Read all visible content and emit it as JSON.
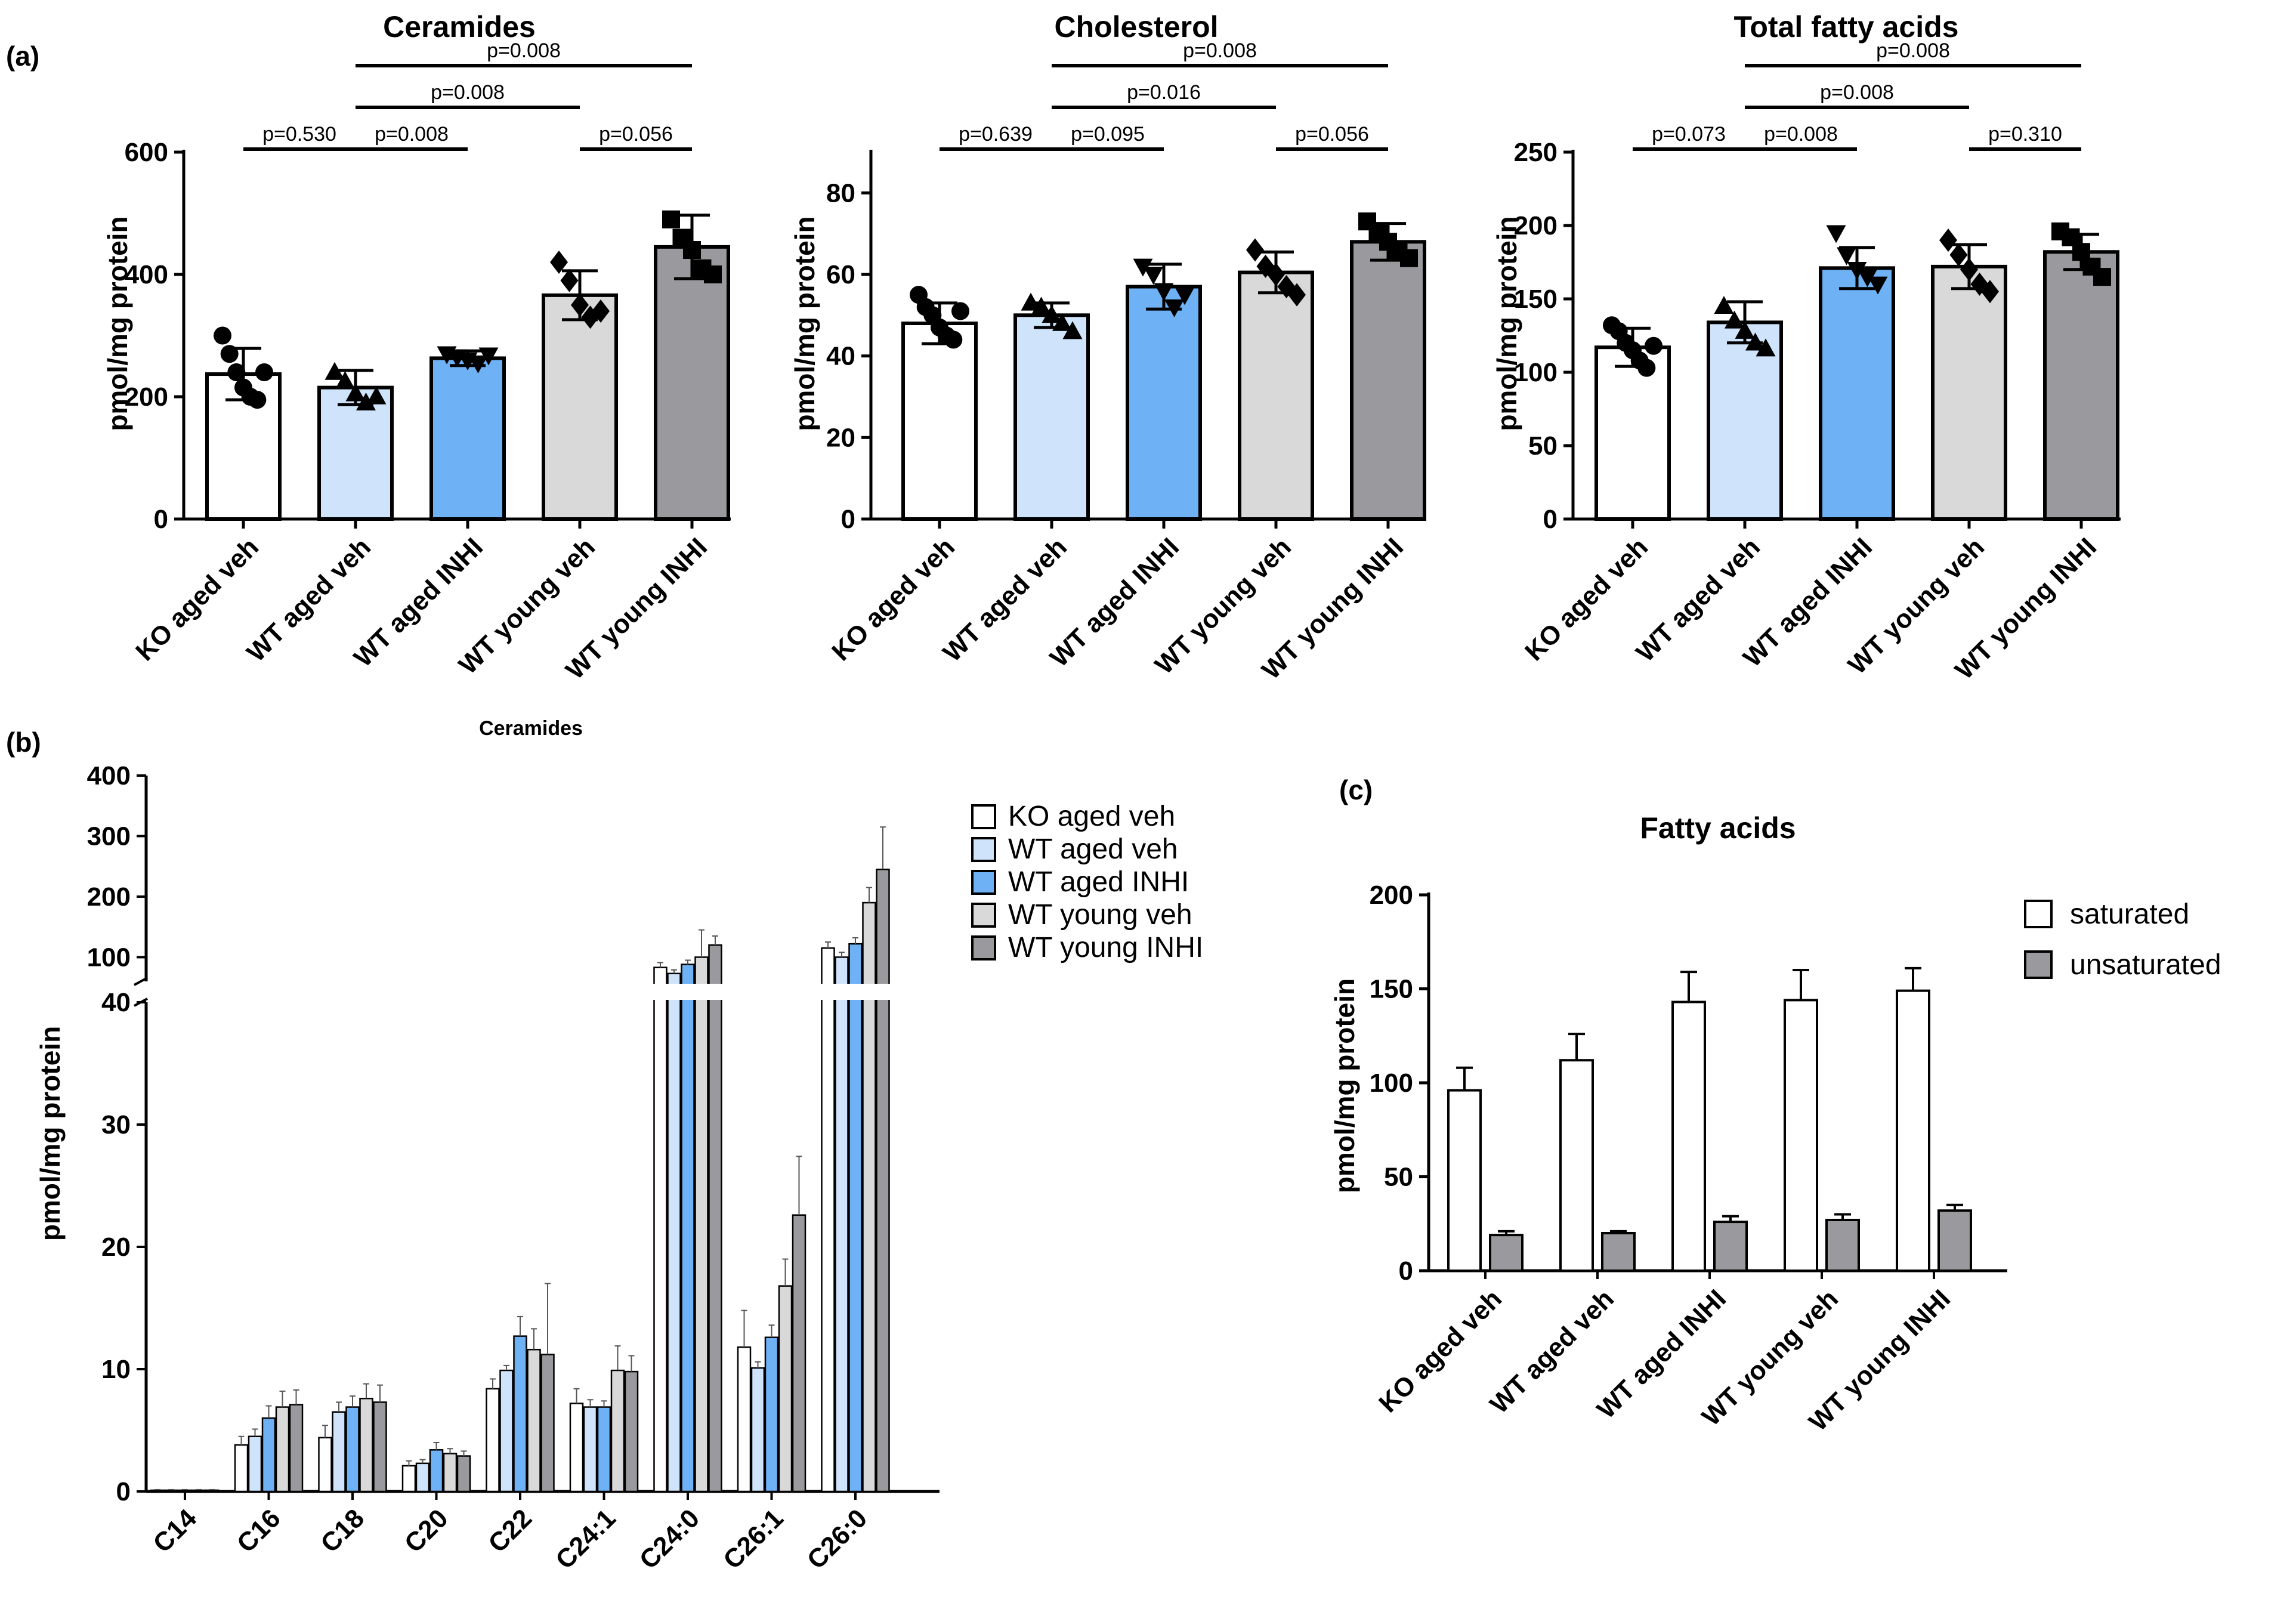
{
  "panel_labels": {
    "a": "(a)",
    "b": "(b)",
    "c": "(c)"
  },
  "colors": {
    "KO aged veh": "#ffffff",
    "WT aged veh": "#cfe4fb",
    "WT aged INHI": "#6fb1f5",
    "WT young veh": "#d9d9d9",
    "WT young INHI": "#9a9a9e",
    "saturated": "#ffffff",
    "unsaturated": "#9a9a9e"
  },
  "chart_data": [
    {
      "id": "ceramides",
      "type": "bar",
      "title": "Ceramides",
      "xlabel": "",
      "ylabel": "pmol/mg protein",
      "categories": [
        "KO aged veh",
        "WT aged veh",
        "WT aged INHI",
        "WT young veh",
        "WT young INHI"
      ],
      "values": [
        237,
        215,
        263,
        366,
        445
      ],
      "errors": [
        42,
        28,
        12,
        40,
        52
      ],
      "points": [
        [
          300,
          270,
          240,
          215,
          200,
          195,
          240
        ],
        [
          240,
          225,
          205,
          190,
          200
        ],
        [
          270,
          265,
          260,
          255,
          268
        ],
        [
          420,
          390,
          350,
          330,
          340
        ],
        [
          490,
          460,
          440,
          410,
          400
        ]
      ],
      "point_marker": [
        "circle",
        "triangle",
        "triangle-down",
        "diamond",
        "square"
      ],
      "ylim": [
        0,
        600
      ],
      "yticks": [
        0,
        200,
        400,
        600
      ],
      "comparisons": [
        {
          "from": 0,
          "to": 1,
          "label": "p=0.530"
        },
        {
          "from": 1,
          "to": 2,
          "label": "p=0.008"
        },
        {
          "from": 3,
          "to": 4,
          "label": "p=0.056"
        },
        {
          "from": 1,
          "to": 3,
          "label": "p=0.008"
        },
        {
          "from": 1,
          "to": 4,
          "label": "p=0.008"
        }
      ]
    },
    {
      "id": "cholesterol",
      "type": "bar",
      "title": "Cholesterol",
      "xlabel": "",
      "ylabel": "pmol/mg protein",
      "categories": [
        "KO aged veh",
        "WT aged veh",
        "WT aged INHI",
        "WT young veh",
        "WT young INHI"
      ],
      "values": [
        48,
        50,
        57,
        60.5,
        68
      ],
      "errors": [
        5,
        3,
        5.5,
        5,
        4.5
      ],
      "points": [
        [
          55,
          52,
          50,
          47,
          45,
          44,
          51
        ],
        [
          53,
          52,
          50,
          48,
          46
        ],
        [
          62,
          60,
          56,
          52,
          55
        ],
        [
          66,
          62,
          60,
          57,
          55
        ],
        [
          73,
          70,
          68,
          66,
          64
        ]
      ],
      "point_marker": [
        "circle",
        "triangle",
        "triangle-down",
        "diamond",
        "square"
      ],
      "ylim": [
        0,
        90
      ],
      "yticks": [
        0,
        20,
        40,
        60,
        80
      ],
      "comparisons": [
        {
          "from": 0,
          "to": 1,
          "label": "p=0.639"
        },
        {
          "from": 1,
          "to": 2,
          "label": "p=0.095"
        },
        {
          "from": 3,
          "to": 4,
          "label": "p=0.056"
        },
        {
          "from": 1,
          "to": 3,
          "label": "p=0.016"
        },
        {
          "from": 1,
          "to": 4,
          "label": "p=0.008"
        }
      ]
    },
    {
      "id": "total-fatty-acids",
      "type": "bar",
      "title": "Total fatty acids",
      "xlabel": "",
      "ylabel": "pmol/mg protein",
      "categories": [
        "KO aged veh",
        "WT aged veh",
        "WT aged INHI",
        "WT young veh",
        "WT young INHI"
      ],
      "values": [
        117,
        134,
        171,
        172,
        182
      ],
      "errors": [
        13,
        14,
        14,
        15,
        12
      ],
      "points": [
        [
          132,
          128,
          120,
          115,
          108,
          103,
          118
        ],
        [
          145,
          135,
          128,
          120,
          116
        ],
        [
          195,
          180,
          170,
          165,
          160
        ],
        [
          190,
          180,
          170,
          160,
          155
        ],
        [
          196,
          192,
          182,
          172,
          165
        ]
      ],
      "point_marker": [
        "circle",
        "triangle",
        "triangle-down",
        "diamond",
        "square"
      ],
      "ylim": [
        0,
        250
      ],
      "yticks": [
        0,
        50,
        100,
        150,
        200,
        250
      ],
      "comparisons": [
        {
          "from": 0,
          "to": 1,
          "label": "p=0.073"
        },
        {
          "from": 1,
          "to": 2,
          "label": "p=0.008"
        },
        {
          "from": 3,
          "to": 4,
          "label": "p=0.310"
        },
        {
          "from": 1,
          "to": 3,
          "label": "p=0.008"
        },
        {
          "from": 1,
          "to": 4,
          "label": "p=0.008"
        }
      ]
    },
    {
      "id": "ceramide-species",
      "type": "bar",
      "title": "Ceramides",
      "xlabel": "",
      "ylabel": "pmol/mg protein",
      "categories": [
        "C14",
        "C16",
        "C18",
        "C20",
        "C22",
        "C24:1",
        "C24:0",
        "C26:1",
        "C26:0"
      ],
      "series": [
        {
          "name": "KO aged veh",
          "values": [
            0.1,
            3.8,
            4.4,
            2.1,
            8.4,
            7.2,
            83,
            11.8,
            115
          ],
          "errors": [
            0.05,
            0.7,
            1.0,
            0.4,
            0.8,
            1.2,
            8,
            3.0,
            10
          ]
        },
        {
          "name": "WT aged veh",
          "values": [
            0.1,
            4.5,
            6.5,
            2.3,
            9.9,
            6.9,
            73,
            10.1,
            100
          ],
          "errors": [
            0.05,
            0.6,
            0.8,
            0.3,
            0.4,
            0.6,
            6,
            0.5,
            8
          ]
        },
        {
          "name": "WT aged INHI",
          "values": [
            0.1,
            6.0,
            6.9,
            3.4,
            12.7,
            6.9,
            88,
            12.6,
            122
          ],
          "errors": [
            0.05,
            1.0,
            0.9,
            0.6,
            1.6,
            0.5,
            7,
            1.0,
            10
          ]
        },
        {
          "name": "WT young veh",
          "values": [
            0.1,
            6.9,
            7.6,
            3.1,
            11.6,
            9.9,
            100,
            16.8,
            190
          ],
          "errors": [
            0.05,
            1.3,
            1.2,
            0.4,
            1.7,
            2.0,
            45,
            2.2,
            25
          ]
        },
        {
          "name": "WT young INHI",
          "values": [
            0.1,
            7.1,
            7.3,
            2.9,
            11.2,
            9.8,
            120,
            22.6,
            245
          ],
          "errors": [
            0.05,
            1.2,
            1.4,
            0.4,
            5.8,
            1.3,
            15,
            4.8,
            70
          ]
        }
      ],
      "y_axis_break": {
        "lower": [
          0,
          40
        ],
        "upper": [
          60,
          400
        ]
      },
      "yticks_lower": [
        0,
        10,
        20,
        30,
        40
      ],
      "yticks_upper": [
        100,
        200,
        300,
        400
      ],
      "legend": "top-right"
    },
    {
      "id": "fatty-acids",
      "type": "bar",
      "title": "Fatty acids",
      "xlabel": "",
      "ylabel": "pmol/mg protein",
      "categories": [
        "KO aged veh",
        "WT aged veh",
        "WT aged INHI",
        "WT young veh",
        "WT young INHI"
      ],
      "series": [
        {
          "name": "saturated",
          "values": [
            96,
            112,
            143,
            144,
            149
          ],
          "errors": [
            12,
            14,
            16,
            16,
            12
          ]
        },
        {
          "name": "unsaturated",
          "values": [
            19,
            20,
            26,
            27,
            32
          ],
          "errors": [
            2,
            1,
            3,
            3,
            3
          ]
        }
      ],
      "ylim": [
        0,
        200
      ],
      "yticks": [
        0,
        50,
        100,
        150,
        200
      ],
      "legend": "top-right"
    }
  ]
}
